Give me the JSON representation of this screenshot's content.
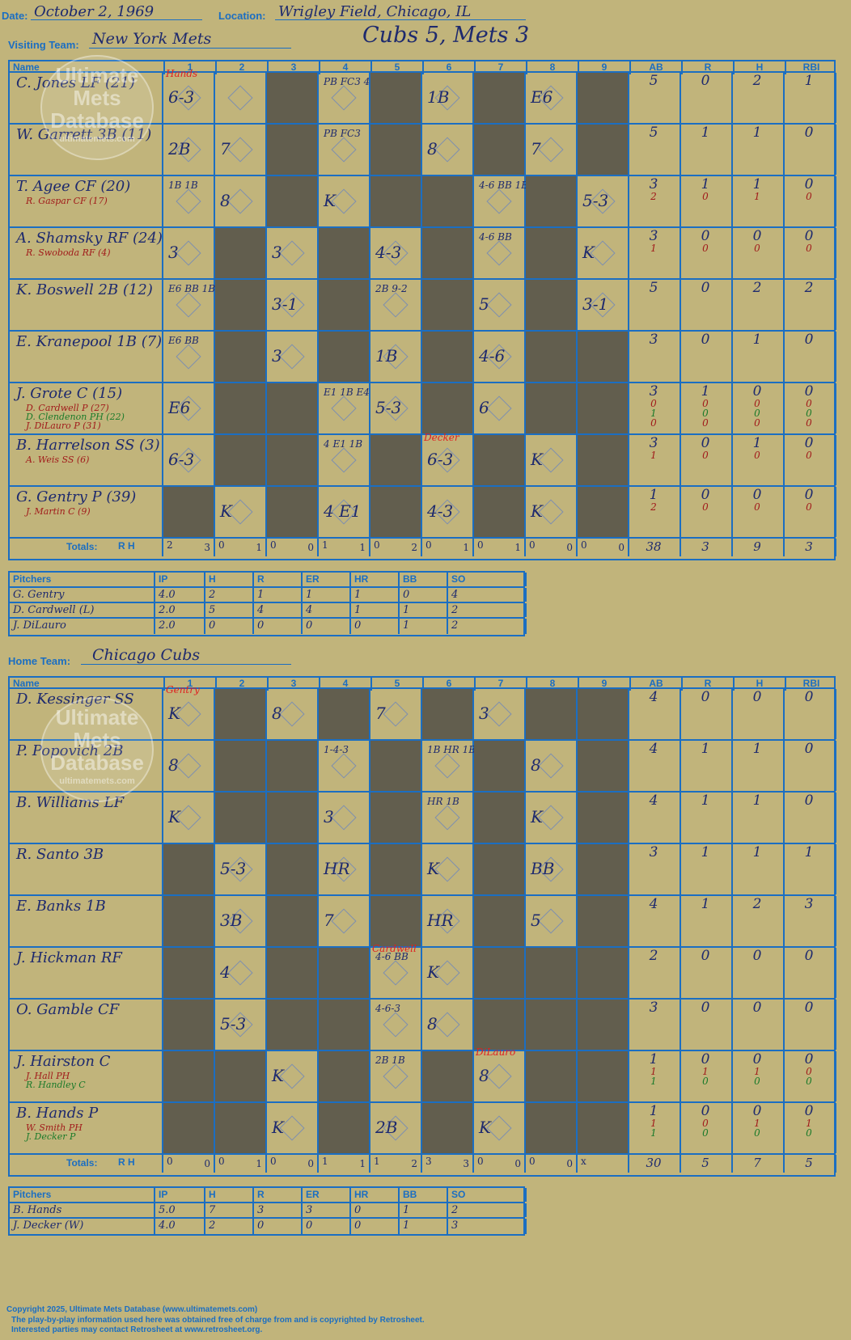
{
  "header": {
    "date_label": "Date:",
    "date": "October 2, 1969",
    "location_label": "Location:",
    "location": "Wrigley Field, Chicago, IL",
    "visiting_label": "Visiting Team:",
    "visiting_team": "New York Mets",
    "result": "Cubs 5, Mets 3",
    "home_label": "Home Team:",
    "home_team": "Chicago Cubs"
  },
  "columns": {
    "name": "Name",
    "innings": [
      "1",
      "2",
      "3",
      "4",
      "5",
      "6",
      "7",
      "8",
      "9"
    ],
    "stats": [
      "AB",
      "R",
      "H",
      "RBI"
    ]
  },
  "totals_label": "Totals:",
  "rh_r": "R",
  "rh_h": "H",
  "visitors": {
    "batters": [
      {
        "name": "C. Jones LF (21)",
        "subs": [],
        "ab": [
          "5"
        ],
        "r": [
          "0"
        ],
        "h": [
          "2"
        ],
        "rbi": [
          "1"
        ]
      },
      {
        "name": "W. Garrett 3B (11)",
        "subs": [],
        "ab": [
          "5"
        ],
        "r": [
          "1"
        ],
        "h": [
          "1"
        ],
        "rbi": [
          "0"
        ]
      },
      {
        "name": "T. Agee CF (20)",
        "subs": [
          "R. Gaspar CF (17)"
        ],
        "ab": [
          "3",
          "2"
        ],
        "r": [
          "1",
          "0"
        ],
        "h": [
          "1",
          "1"
        ],
        "rbi": [
          "0",
          "0"
        ]
      },
      {
        "name": "A. Shamsky RF (24)",
        "subs": [
          "R. Swoboda RF (4)"
        ],
        "ab": [
          "3",
          "1"
        ],
        "r": [
          "0",
          "0"
        ],
        "h": [
          "0",
          "0"
        ],
        "rbi": [
          "0",
          "0"
        ]
      },
      {
        "name": "K. Boswell 2B (12)",
        "subs": [],
        "ab": [
          "5"
        ],
        "r": [
          "0"
        ],
        "h": [
          "2"
        ],
        "rbi": [
          "2"
        ]
      },
      {
        "name": "E. Kranepool 1B (7)",
        "subs": [],
        "ab": [
          "3"
        ],
        "r": [
          "0"
        ],
        "h": [
          "1"
        ],
        "rbi": [
          "0"
        ]
      },
      {
        "name": "J. Grote C (15)",
        "subs": [
          "D. Cardwell P (27)",
          "D. Clendenon PH (22)",
          "J. DiLauro P (31)"
        ],
        "ab": [
          "3",
          "0",
          "1",
          "0"
        ],
        "r": [
          "1",
          "0",
          "0",
          "0"
        ],
        "h": [
          "0",
          "0",
          "0",
          "0"
        ],
        "rbi": [
          "0",
          "0",
          "0",
          "0"
        ]
      },
      {
        "name": "B. Harrelson SS (3)",
        "subs": [
          "A. Weis SS (6)"
        ],
        "ab": [
          "3",
          "1"
        ],
        "r": [
          "0",
          "0"
        ],
        "h": [
          "1",
          "0"
        ],
        "rbi": [
          "0",
          "0"
        ]
      },
      {
        "name": "G. Gentry P (39)",
        "subs": [
          "J. Martin C (9)"
        ],
        "ab": [
          "1",
          "2"
        ],
        "r": [
          "0",
          "0"
        ],
        "h": [
          "0",
          "0"
        ],
        "rbi": [
          "0",
          "0"
        ]
      }
    ],
    "inning_totals": [
      [
        "2",
        "3"
      ],
      [
        "0",
        "1"
      ],
      [
        "0",
        "0"
      ],
      [
        "1",
        "1"
      ],
      [
        "0",
        "2"
      ],
      [
        "0",
        "1"
      ],
      [
        "0",
        "1"
      ],
      [
        "0",
        "0"
      ],
      [
        "0",
        "0"
      ]
    ],
    "totals": [
      "38",
      "3",
      "9",
      "3"
    ],
    "pitchers": [
      {
        "name": "G. Gentry",
        "ip": "4.0",
        "h": "2",
        "r": "1",
        "er": "1",
        "hr": "1",
        "bb": "0",
        "so": "4"
      },
      {
        "name": "D. Cardwell (L)",
        "ip": "2.0",
        "h": "5",
        "r": "4",
        "er": "4",
        "hr": "1",
        "bb": "1",
        "so": "2"
      },
      {
        "name": "J. DiLauro",
        "ip": "2.0",
        "h": "0",
        "r": "0",
        "er": "0",
        "hr": "0",
        "bb": "1",
        "so": "2"
      }
    ]
  },
  "home": {
    "batters": [
      {
        "name": "D. Kessinger SS",
        "subs": [],
        "ab": [
          "4"
        ],
        "r": [
          "0"
        ],
        "h": [
          "0"
        ],
        "rbi": [
          "0"
        ]
      },
      {
        "name": "P. Popovich 2B",
        "subs": [],
        "ab": [
          "4"
        ],
        "r": [
          "1"
        ],
        "h": [
          "1"
        ],
        "rbi": [
          "0"
        ]
      },
      {
        "name": "B. Williams LF",
        "subs": [],
        "ab": [
          "4"
        ],
        "r": [
          "1"
        ],
        "h": [
          "1"
        ],
        "rbi": [
          "0"
        ]
      },
      {
        "name": "R. Santo 3B",
        "subs": [],
        "ab": [
          "3"
        ],
        "r": [
          "1"
        ],
        "h": [
          "1"
        ],
        "rbi": [
          "1"
        ]
      },
      {
        "name": "E. Banks 1B",
        "subs": [],
        "ab": [
          "4"
        ],
        "r": [
          "1"
        ],
        "h": [
          "2"
        ],
        "rbi": [
          "3"
        ]
      },
      {
        "name": "J. Hickman RF",
        "subs": [],
        "ab": [
          "2"
        ],
        "r": [
          "0"
        ],
        "h": [
          "0"
        ],
        "rbi": [
          "0"
        ]
      },
      {
        "name": "O. Gamble CF",
        "subs": [],
        "ab": [
          "3"
        ],
        "r": [
          "0"
        ],
        "h": [
          "0"
        ],
        "rbi": [
          "0"
        ]
      },
      {
        "name": "J. Hairston C",
        "subs": [
          "J. Hall PH",
          "R. Handley C"
        ],
        "ab": [
          "1",
          "1",
          "1"
        ],
        "r": [
          "0",
          "1",
          "0"
        ],
        "h": [
          "0",
          "1",
          "0"
        ],
        "rbi": [
          "0",
          "0",
          "0"
        ]
      },
      {
        "name": "B. Hands P",
        "subs": [
          "W. Smith PH",
          "J. Decker P"
        ],
        "ab": [
          "1",
          "1",
          "1"
        ],
        "r": [
          "0",
          "0",
          "0"
        ],
        "h": [
          "0",
          "1",
          "0"
        ],
        "rbi": [
          "0",
          "1",
          "0"
        ]
      }
    ],
    "inning_totals": [
      [
        "0",
        "0"
      ],
      [
        "0",
        "1"
      ],
      [
        "0",
        "0"
      ],
      [
        "1",
        "1"
      ],
      [
        "1",
        "2"
      ],
      [
        "3",
        "3"
      ],
      [
        "0",
        "0"
      ],
      [
        "0",
        "0"
      ],
      [
        "x",
        ""
      ]
    ],
    "totals": [
      "30",
      "5",
      "7",
      "5"
    ],
    "pitchers": [
      {
        "name": "B. Hands",
        "ip": "5.0",
        "h": "7",
        "r": "3",
        "er": "3",
        "hr": "0",
        "bb": "1",
        "so": "2"
      },
      {
        "name": "J. Decker (W)",
        "ip": "4.0",
        "h": "2",
        "r": "0",
        "er": "0",
        "hr": "0",
        "bb": "1",
        "so": "3"
      }
    ]
  },
  "pitcher_headers": [
    "Pitchers",
    "IP",
    "H",
    "R",
    "ER",
    "HR",
    "BB",
    "SO"
  ],
  "plays_visitors": [
    [
      "6-3",
      "",
      "",
      "PB FC3 4",
      "",
      "1B",
      "",
      "E6",
      ""
    ],
    [
      "2B",
      "7",
      "",
      "PB FC3",
      "",
      "8",
      "",
      "7",
      ""
    ],
    [
      "1B 1B",
      "8",
      "",
      "K",
      "",
      "",
      "4-6 BB 1B",
      "",
      "5-3"
    ],
    [
      "3",
      "",
      "3",
      "",
      "4-3",
      "",
      "4-6 BB",
      "",
      "K"
    ],
    [
      "E6 BB 1B",
      "",
      "3-1",
      "",
      "2B 9-2",
      "",
      "5",
      "",
      "3-1"
    ],
    [
      "E6 BB",
      "",
      "3",
      "",
      "1B",
      "",
      "4-6",
      "",
      ""
    ],
    [
      "E6",
      "",
      "",
      "E1 1B E4",
      "5-3",
      "",
      "6",
      "",
      ""
    ],
    [
      "6-3",
      "",
      "",
      "4 E1 1B",
      "",
      "6-3",
      "",
      "K",
      ""
    ],
    [
      "",
      "K",
      "",
      "4 E1",
      "",
      "4-3",
      "",
      "K",
      ""
    ]
  ],
  "plays_home": [
    [
      "K",
      "",
      "8",
      "",
      "7",
      "",
      "3",
      "",
      ""
    ],
    [
      "8",
      "",
      "",
      "1-4-3",
      "",
      "1B HR 1B",
      "",
      "8",
      ""
    ],
    [
      "K",
      "",
      "",
      "3",
      "",
      "HR 1B",
      "",
      "K",
      ""
    ],
    [
      "",
      "5-3",
      "",
      "HR",
      "",
      "K",
      "",
      "BB",
      ""
    ],
    [
      "",
      "3B",
      "",
      "7",
      "",
      "HR",
      "",
      "5",
      ""
    ],
    [
      "",
      "4",
      "",
      "",
      "4-6 BB",
      "K",
      "",
      "",
      ""
    ],
    [
      "",
      "5-3",
      "",
      "",
      "4-6-3",
      "8",
      "",
      "",
      ""
    ],
    [
      "",
      "",
      "K",
      "",
      "2B 1B",
      "",
      "8",
      "",
      ""
    ],
    [
      "",
      "",
      "K",
      "",
      "2B",
      "",
      "K",
      "",
      ""
    ]
  ],
  "annotations": {
    "v1": "Hands",
    "v6": "Decker",
    "h1": "Gentry",
    "h5": "Cardwell",
    "h7": "DiLauro"
  },
  "logo": {
    "l1": "Ultimate",
    "l2": "Mets",
    "l3": "Database",
    "l4": "ultimatemets.com"
  },
  "footer": {
    "line1": "Copyright 2025, Ultimate Mets Database (www.ultimatemets.com)",
    "line2": "The play-by-play information used here was obtained free of charge from and is copyrighted by Retrosheet.",
    "line3": "Interested parties may contact Retrosheet at www.retrosheet.org."
  },
  "colors": {
    "background": "#c1b47b",
    "grid": "#1b6ec2",
    "ink": "#1e2a6e",
    "dark_cell": "#625e4e",
    "sub_red": "#a11b1b",
    "sub_green": "#1a7a2a"
  }
}
